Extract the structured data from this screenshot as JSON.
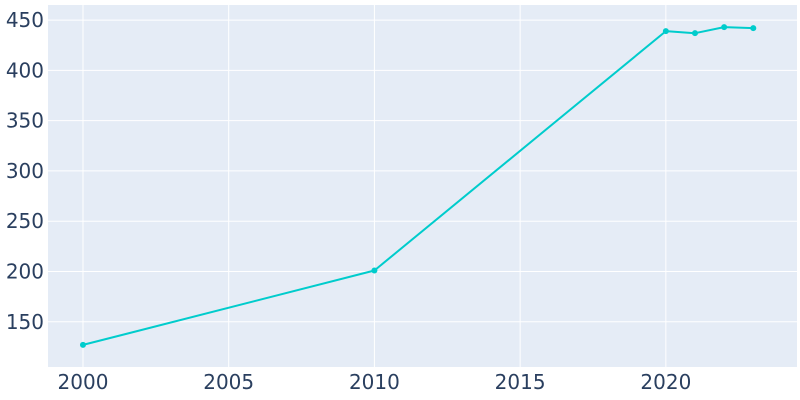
{
  "chart_data": {
    "type": "line",
    "title": "",
    "xlabel": "",
    "ylabel": "",
    "xlim": [
      1998.8,
      2024.5
    ],
    "ylim": [
      105,
      465
    ],
    "x_ticks": [
      2000,
      2005,
      2010,
      2015,
      2020
    ],
    "y_ticks": [
      150,
      200,
      250,
      300,
      350,
      400,
      450
    ],
    "grid": true,
    "legend": "none",
    "colors": {
      "plot_bg": "#e5ecf6",
      "line": "#00cccc",
      "tick_text": "#2a3f5f"
    },
    "series": [
      {
        "x": [
          2000,
          2010,
          2020,
          2021,
          2022,
          2023
        ],
        "y": [
          127,
          201,
          439,
          437,
          443,
          442
        ]
      }
    ]
  }
}
